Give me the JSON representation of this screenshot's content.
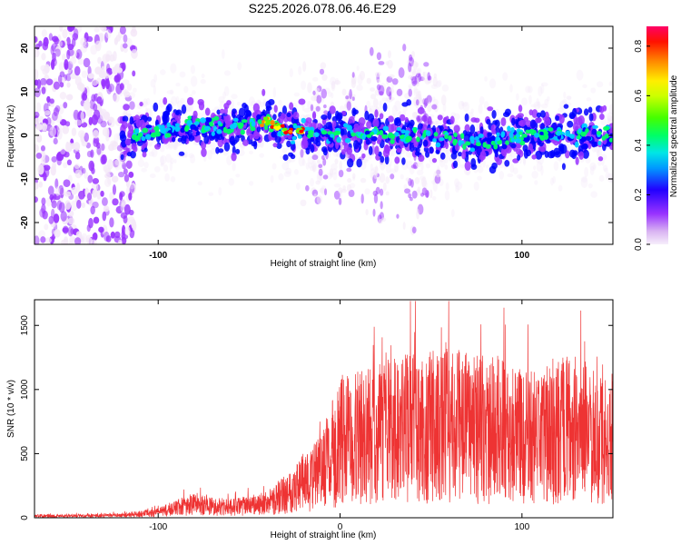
{
  "figure": {
    "title": "S225.2026.078.06.46.E29"
  },
  "chart_data": [
    {
      "type": "heatmap",
      "xlabel": "Height of straight line (km)",
      "ylabel": "Frequency (Hz)",
      "xlim": [
        -168,
        150
      ],
      "ylim": [
        -25,
        25
      ],
      "xticks": [
        -100,
        0,
        100
      ],
      "xtick_labels": [
        "-100",
        "0",
        "100"
      ],
      "yticks": [
        -20,
        -10,
        0,
        10,
        20
      ],
      "ytick_labels": [
        "-20",
        "-10",
        "0",
        "10",
        "20"
      ],
      "colorbar": {
        "label": "Normalized spectral amplitude",
        "range": [
          0,
          0.88
        ],
        "ticks": [
          0.0,
          0.2,
          0.4,
          0.6,
          0.8
        ],
        "tick_labels": [
          "0.0",
          "0.2",
          "0.4",
          "0.6",
          "0.8"
        ],
        "colors": [
          "#f4e8f8",
          "#9933ff",
          "#0000ff",
          "#00ccff",
          "#00ff66",
          "#66ff00",
          "#ffff00",
          "#ff8800",
          "#ff0000",
          "#ff0066"
        ]
      },
      "ridge": {
        "description_points_x": [
          -120,
          -100,
          -80,
          -60,
          -40,
          -30,
          -20,
          0,
          20,
          50,
          75,
          100,
          150
        ],
        "description_points_y": [
          0,
          1,
          2,
          2,
          3,
          1,
          1,
          0,
          0,
          0,
          -2,
          0,
          0
        ]
      }
    },
    {
      "type": "line",
      "xlabel": "Height of straight line (km)",
      "ylabel": "SNR (10 * v/v)",
      "xlim": [
        -168,
        150
      ],
      "ylim": [
        0,
        1700
      ],
      "xticks": [
        -100,
        0,
        100
      ],
      "xtick_labels": [
        "-100",
        "0",
        "100"
      ],
      "yticks": [
        0,
        500,
        1000,
        1500
      ],
      "ytick_labels": [
        "0",
        "500",
        "1000",
        "1500"
      ],
      "color": "#ee3333",
      "series": [
        {
          "name": "SNR",
          "x": [
            -168,
            -140,
            -120,
            -100,
            -90,
            -80,
            -70,
            -60,
            -50,
            -40,
            -30,
            -20,
            -10,
            0,
            10,
            20,
            30,
            40,
            50,
            60,
            70,
            80,
            90,
            100,
            110,
            120,
            130,
            140,
            150
          ],
          "y": [
            15,
            15,
            20,
            40,
            80,
            100,
            90,
            80,
            95,
            110,
            190,
            280,
            350,
            600,
            620,
            650,
            680,
            700,
            700,
            750,
            720,
            700,
            680,
            620,
            640,
            700,
            680,
            640,
            620
          ]
        }
      ]
    }
  ]
}
